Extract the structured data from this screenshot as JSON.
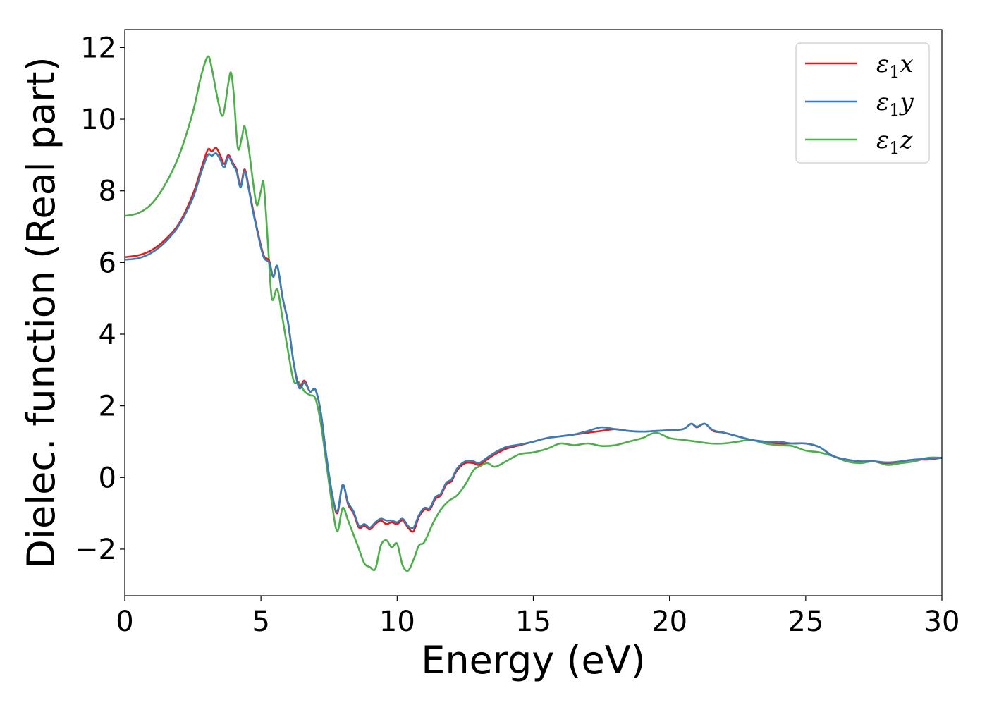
{
  "chart_data": {
    "type": "line",
    "xlabel": "Energy (eV)",
    "ylabel": "Dielec. function (Real part)",
    "xlim": [
      0,
      30
    ],
    "ylim": [
      -3.3,
      12.5
    ],
    "xticks": [
      0,
      5,
      10,
      15,
      20,
      25,
      30
    ],
    "xtick_labels": [
      "0",
      "5",
      "10",
      "15",
      "20",
      "25",
      "30"
    ],
    "yticks": [
      -2,
      0,
      2,
      4,
      6,
      8,
      10,
      12
    ],
    "ytick_labels": [
      "−2",
      "0",
      "2",
      "4",
      "6",
      "8",
      "10",
      "12"
    ],
    "grid": false,
    "legend_position": "top-right",
    "series": [
      {
        "name": "ε₁x",
        "symbol": "ε",
        "subscript": "1",
        "suffix": "x",
        "color": "#e41a1c",
        "points": [
          [
            0,
            6.15
          ],
          [
            0.5,
            6.2
          ],
          [
            1,
            6.35
          ],
          [
            1.5,
            6.65
          ],
          [
            2,
            7.1
          ],
          [
            2.5,
            7.9
          ],
          [
            2.8,
            8.6
          ],
          [
            3.05,
            9.15
          ],
          [
            3.2,
            9.1
          ],
          [
            3.35,
            9.2
          ],
          [
            3.5,
            9.0
          ],
          [
            3.65,
            8.75
          ],
          [
            3.8,
            9.0
          ],
          [
            3.95,
            8.8
          ],
          [
            4.1,
            8.6
          ],
          [
            4.25,
            8.15
          ],
          [
            4.4,
            8.6
          ],
          [
            4.55,
            8.1
          ],
          [
            4.7,
            7.5
          ],
          [
            4.9,
            6.8
          ],
          [
            5.1,
            6.2
          ],
          [
            5.3,
            6.05
          ],
          [
            5.45,
            5.6
          ],
          [
            5.6,
            5.9
          ],
          [
            5.8,
            5.0
          ],
          [
            6.0,
            4.3
          ],
          [
            6.2,
            3.2
          ],
          [
            6.4,
            2.55
          ],
          [
            6.6,
            2.7
          ],
          [
            6.8,
            2.4
          ],
          [
            7.0,
            2.45
          ],
          [
            7.2,
            1.8
          ],
          [
            7.4,
            0.6
          ],
          [
            7.6,
            -0.4
          ],
          [
            7.8,
            -1.0
          ],
          [
            8.0,
            -0.2
          ],
          [
            8.2,
            -0.75
          ],
          [
            8.4,
            -1.0
          ],
          [
            8.6,
            -1.4
          ],
          [
            8.8,
            -1.35
          ],
          [
            9.0,
            -1.45
          ],
          [
            9.2,
            -1.3
          ],
          [
            9.4,
            -1.2
          ],
          [
            9.6,
            -1.3
          ],
          [
            9.8,
            -1.25
          ],
          [
            10.0,
            -1.3
          ],
          [
            10.2,
            -1.2
          ],
          [
            10.4,
            -1.4
          ],
          [
            10.6,
            -1.5
          ],
          [
            10.8,
            -1.1
          ],
          [
            11.0,
            -0.9
          ],
          [
            11.2,
            -0.9
          ],
          [
            11.4,
            -0.6
          ],
          [
            11.6,
            -0.5
          ],
          [
            11.8,
            -0.2
          ],
          [
            12.0,
            -0.1
          ],
          [
            12.2,
            0.2
          ],
          [
            12.5,
            0.4
          ],
          [
            12.8,
            0.4
          ],
          [
            13.0,
            0.35
          ],
          [
            13.3,
            0.5
          ],
          [
            13.6,
            0.65
          ],
          [
            14.0,
            0.8
          ],
          [
            14.5,
            0.9
          ],
          [
            15.0,
            1.0
          ],
          [
            15.5,
            1.1
          ],
          [
            16.0,
            1.15
          ],
          [
            16.5,
            1.2
          ],
          [
            17.0,
            1.25
          ],
          [
            17.5,
            1.3
          ],
          [
            18.0,
            1.35
          ],
          [
            18.5,
            1.3
          ],
          [
            19.0,
            1.28
          ],
          [
            19.5,
            1.3
          ],
          [
            20.0,
            1.32
          ],
          [
            20.5,
            1.35
          ],
          [
            20.8,
            1.5
          ],
          [
            21.0,
            1.4
          ],
          [
            21.3,
            1.5
          ],
          [
            21.6,
            1.3
          ],
          [
            22.0,
            1.25
          ],
          [
            22.5,
            1.15
          ],
          [
            23.0,
            1.05
          ],
          [
            23.5,
            1.0
          ],
          [
            24.0,
            0.95
          ],
          [
            24.5,
            0.95
          ],
          [
            25.0,
            0.95
          ],
          [
            25.5,
            0.85
          ],
          [
            26.0,
            0.6
          ],
          [
            26.5,
            0.5
          ],
          [
            27.0,
            0.45
          ],
          [
            27.5,
            0.45
          ],
          [
            28.0,
            0.4
          ],
          [
            28.5,
            0.45
          ],
          [
            29.0,
            0.5
          ],
          [
            29.5,
            0.5
          ],
          [
            30.0,
            0.55
          ]
        ]
      },
      {
        "name": "ε₁y",
        "symbol": "ε",
        "subscript": "1",
        "suffix": "y",
        "color": "#377eb8",
        "points": [
          [
            0,
            6.08
          ],
          [
            0.5,
            6.12
          ],
          [
            1,
            6.28
          ],
          [
            1.5,
            6.58
          ],
          [
            2,
            7.05
          ],
          [
            2.5,
            7.8
          ],
          [
            2.8,
            8.5
          ],
          [
            3.05,
            9.0
          ],
          [
            3.2,
            8.98
          ],
          [
            3.35,
            9.05
          ],
          [
            3.5,
            8.88
          ],
          [
            3.65,
            8.65
          ],
          [
            3.8,
            8.95
          ],
          [
            3.95,
            8.75
          ],
          [
            4.1,
            8.55
          ],
          [
            4.25,
            8.1
          ],
          [
            4.4,
            8.55
          ],
          [
            4.55,
            8.05
          ],
          [
            4.7,
            7.45
          ],
          [
            4.9,
            6.75
          ],
          [
            5.1,
            6.15
          ],
          [
            5.3,
            6.0
          ],
          [
            5.45,
            5.6
          ],
          [
            5.6,
            5.9
          ],
          [
            5.8,
            5.0
          ],
          [
            6.0,
            4.3
          ],
          [
            6.2,
            3.2
          ],
          [
            6.4,
            2.5
          ],
          [
            6.6,
            2.65
          ],
          [
            6.8,
            2.4
          ],
          [
            7.0,
            2.45
          ],
          [
            7.2,
            1.8
          ],
          [
            7.4,
            0.6
          ],
          [
            7.6,
            -0.4
          ],
          [
            7.8,
            -0.95
          ],
          [
            8.0,
            -0.2
          ],
          [
            8.2,
            -0.7
          ],
          [
            8.4,
            -0.95
          ],
          [
            8.6,
            -1.35
          ],
          [
            8.8,
            -1.3
          ],
          [
            9.0,
            -1.4
          ],
          [
            9.2,
            -1.25
          ],
          [
            9.4,
            -1.15
          ],
          [
            9.6,
            -1.2
          ],
          [
            9.8,
            -1.2
          ],
          [
            10.0,
            -1.25
          ],
          [
            10.2,
            -1.15
          ],
          [
            10.4,
            -1.35
          ],
          [
            10.6,
            -1.4
          ],
          [
            10.8,
            -1.05
          ],
          [
            11.0,
            -0.85
          ],
          [
            11.2,
            -0.85
          ],
          [
            11.4,
            -0.55
          ],
          [
            11.6,
            -0.45
          ],
          [
            11.8,
            -0.15
          ],
          [
            12.0,
            -0.05
          ],
          [
            12.2,
            0.25
          ],
          [
            12.5,
            0.45
          ],
          [
            12.8,
            0.45
          ],
          [
            13.0,
            0.4
          ],
          [
            13.3,
            0.55
          ],
          [
            13.6,
            0.7
          ],
          [
            14.0,
            0.85
          ],
          [
            14.5,
            0.92
          ],
          [
            15.0,
            1.0
          ],
          [
            15.5,
            1.1
          ],
          [
            16.0,
            1.15
          ],
          [
            16.5,
            1.2
          ],
          [
            17.0,
            1.3
          ],
          [
            17.5,
            1.4
          ],
          [
            18.0,
            1.35
          ],
          [
            18.5,
            1.3
          ],
          [
            19.0,
            1.28
          ],
          [
            19.5,
            1.3
          ],
          [
            20.0,
            1.32
          ],
          [
            20.5,
            1.35
          ],
          [
            20.8,
            1.5
          ],
          [
            21.0,
            1.42
          ],
          [
            21.3,
            1.5
          ],
          [
            21.6,
            1.32
          ],
          [
            22.0,
            1.25
          ],
          [
            22.5,
            1.15
          ],
          [
            23.0,
            1.05
          ],
          [
            23.5,
            1.0
          ],
          [
            24.0,
            1.0
          ],
          [
            24.5,
            0.95
          ],
          [
            25.0,
            0.95
          ],
          [
            25.5,
            0.85
          ],
          [
            26.0,
            0.6
          ],
          [
            26.5,
            0.5
          ],
          [
            27.0,
            0.45
          ],
          [
            27.5,
            0.45
          ],
          [
            28.0,
            0.42
          ],
          [
            28.5,
            0.45
          ],
          [
            29.0,
            0.5
          ],
          [
            29.5,
            0.52
          ],
          [
            30.0,
            0.55
          ]
        ]
      },
      {
        "name": "ε₁z",
        "symbol": "ε",
        "subscript": "1",
        "suffix": "z",
        "color": "#4daf4a",
        "points": [
          [
            0,
            7.3
          ],
          [
            0.5,
            7.38
          ],
          [
            1,
            7.65
          ],
          [
            1.5,
            8.2
          ],
          [
            2,
            9.0
          ],
          [
            2.5,
            10.2
          ],
          [
            2.8,
            11.2
          ],
          [
            3.05,
            11.75
          ],
          [
            3.2,
            11.4
          ],
          [
            3.4,
            10.6
          ],
          [
            3.6,
            10.1
          ],
          [
            3.8,
            11.0
          ],
          [
            3.9,
            11.3
          ],
          [
            4.0,
            10.7
          ],
          [
            4.15,
            9.2
          ],
          [
            4.3,
            9.5
          ],
          [
            4.4,
            9.8
          ],
          [
            4.55,
            9.2
          ],
          [
            4.7,
            8.3
          ],
          [
            4.85,
            7.6
          ],
          [
            5.0,
            8.0
          ],
          [
            5.1,
            8.2
          ],
          [
            5.25,
            6.6
          ],
          [
            5.4,
            5.0
          ],
          [
            5.6,
            5.25
          ],
          [
            5.8,
            4.4
          ],
          [
            6.0,
            3.5
          ],
          [
            6.2,
            2.7
          ],
          [
            6.4,
            2.65
          ],
          [
            6.6,
            2.4
          ],
          [
            6.8,
            2.3
          ],
          [
            7.0,
            2.2
          ],
          [
            7.2,
            1.5
          ],
          [
            7.4,
            0.4
          ],
          [
            7.6,
            -0.7
          ],
          [
            7.8,
            -1.5
          ],
          [
            8.0,
            -0.85
          ],
          [
            8.2,
            -1.2
          ],
          [
            8.4,
            -1.6
          ],
          [
            8.6,
            -2.0
          ],
          [
            8.8,
            -2.4
          ],
          [
            9.0,
            -2.5
          ],
          [
            9.2,
            -2.55
          ],
          [
            9.4,
            -1.9
          ],
          [
            9.6,
            -1.75
          ],
          [
            9.8,
            -1.95
          ],
          [
            10.0,
            -1.85
          ],
          [
            10.2,
            -2.45
          ],
          [
            10.4,
            -2.6
          ],
          [
            10.6,
            -2.3
          ],
          [
            10.8,
            -1.9
          ],
          [
            11.0,
            -1.8
          ],
          [
            11.3,
            -1.3
          ],
          [
            11.6,
            -0.9
          ],
          [
            11.9,
            -0.65
          ],
          [
            12.2,
            -0.5
          ],
          [
            12.5,
            -0.2
          ],
          [
            12.8,
            0.2
          ],
          [
            13.0,
            0.3
          ],
          [
            13.3,
            0.4
          ],
          [
            13.6,
            0.3
          ],
          [
            14.0,
            0.45
          ],
          [
            14.5,
            0.65
          ],
          [
            15.0,
            0.7
          ],
          [
            15.5,
            0.8
          ],
          [
            16.0,
            0.95
          ],
          [
            16.5,
            0.9
          ],
          [
            17.0,
            0.95
          ],
          [
            17.5,
            0.88
          ],
          [
            18.0,
            0.9
          ],
          [
            18.5,
            1.0
          ],
          [
            19.0,
            1.1
          ],
          [
            19.5,
            1.25
          ],
          [
            20.0,
            1.1
          ],
          [
            20.5,
            1.05
          ],
          [
            21.0,
            1.0
          ],
          [
            21.5,
            0.95
          ],
          [
            22.0,
            0.95
          ],
          [
            22.5,
            1.0
          ],
          [
            23.0,
            1.05
          ],
          [
            23.5,
            0.95
          ],
          [
            24.0,
            0.9
          ],
          [
            24.5,
            0.88
          ],
          [
            25.0,
            0.75
          ],
          [
            25.5,
            0.7
          ],
          [
            26.0,
            0.6
          ],
          [
            26.5,
            0.45
          ],
          [
            27.0,
            0.4
          ],
          [
            27.5,
            0.45
          ],
          [
            28.0,
            0.35
          ],
          [
            28.5,
            0.4
          ],
          [
            29.0,
            0.45
          ],
          [
            29.5,
            0.55
          ],
          [
            30.0,
            0.55
          ]
        ]
      }
    ]
  }
}
